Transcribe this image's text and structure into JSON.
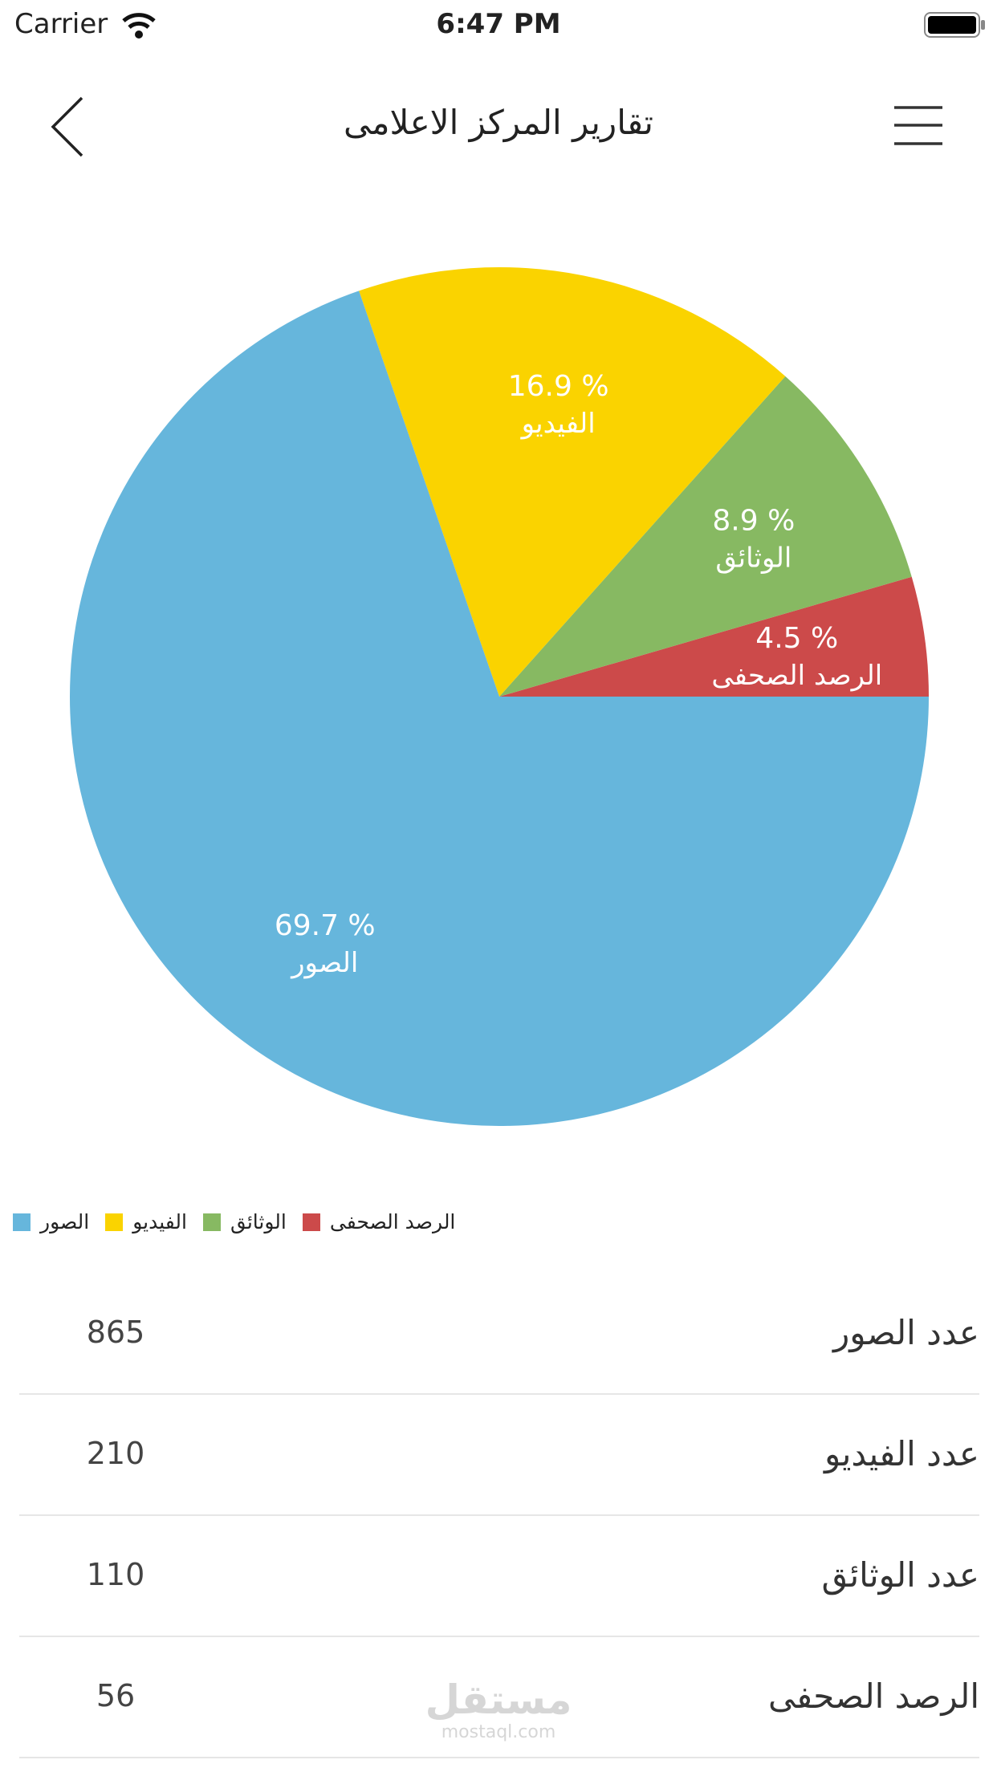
{
  "status_bar": {
    "carrier": "Carrier",
    "time": "6:47 PM"
  },
  "header": {
    "title": "تقارير المركز الاعلامى"
  },
  "chart_data": {
    "type": "pie",
    "categories": [
      "الصور",
      "الفيديو",
      "الوثائق",
      "الرصد الصحفى"
    ],
    "values": [
      69.7,
      16.9,
      8.9,
      4.5
    ],
    "value_labels": [
      "69.7 %",
      "16.9 %",
      "8.9 %",
      "4.5 %"
    ],
    "colors": [
      "#66b6dc",
      "#fad300",
      "#87b962",
      "#cc4a4a"
    ],
    "legend": true
  },
  "table": {
    "rows": [
      [
        "عدد الصور",
        865
      ],
      [
        "عدد الفيديو",
        210
      ],
      [
        "عدد الوثائق",
        110
      ],
      [
        "الرصد الصحفى",
        56
      ]
    ]
  },
  "watermark": {
    "brand": "مستقل",
    "site": "mostaql.com"
  }
}
